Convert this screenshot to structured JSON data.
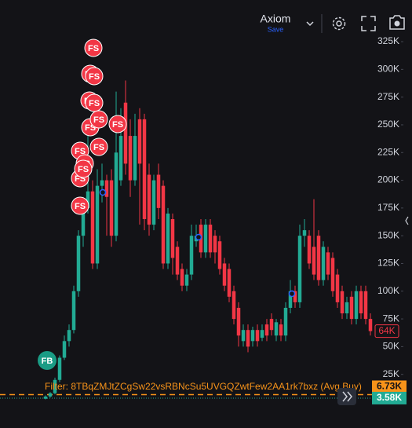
{
  "toolbar": {
    "layout_name": "Axiom",
    "save": "Save"
  },
  "chart_data": {
    "type": "candlestick",
    "ylim": [
      -5670,
      330700
    ],
    "yticks": [
      {
        "value": 25000,
        "label": "25K"
      },
      {
        "value": 50000,
        "label": "50K"
      },
      {
        "value": 75000,
        "label": "75K"
      },
      {
        "value": 100000,
        "label": "100K"
      },
      {
        "value": 125000,
        "label": "125K"
      },
      {
        "value": 150000,
        "label": "150K"
      },
      {
        "value": 175000,
        "label": "175K"
      },
      {
        "value": 200000,
        "label": "200K"
      },
      {
        "value": 225000,
        "label": "225K"
      },
      {
        "value": 250000,
        "label": "250K"
      },
      {
        "value": 275000,
        "label": "275K"
      },
      {
        "value": 300000,
        "label": "300K"
      },
      {
        "value": 325000,
        "label": "325K"
      }
    ],
    "up_color": "#22ab94",
    "down_color": "#f23645",
    "open": [
      3000,
      5000,
      8000,
      20000,
      40000,
      55000,
      65000,
      100000,
      150000,
      175000,
      190000,
      125000,
      195000,
      200000,
      200000,
      150000,
      200000,
      270000,
      240000,
      200000,
      255000,
      255000,
      205000,
      160000,
      205000,
      195000,
      125000,
      165000,
      140000,
      120000,
      105000,
      115000,
      145000,
      160000,
      135000,
      160000,
      150000,
      145000,
      125000,
      120000,
      100000,
      85000,
      55000,
      65000,
      55000,
      65000,
      58000,
      70000,
      75000,
      60000,
      70000,
      60000,
      85000,
      100000,
      90000,
      150000,
      150000,
      140000,
      150000,
      110000,
      135000,
      130000,
      115000,
      100000,
      80000,
      95000,
      75000,
      100000,
      100000,
      75000
    ],
    "high": [
      6000,
      9000,
      22000,
      42000,
      60000,
      70000,
      105000,
      155000,
      185000,
      240000,
      200000,
      210000,
      215000,
      205000,
      210000,
      280000,
      265000,
      290000,
      255000,
      260000,
      265000,
      260000,
      215000,
      205000,
      215000,
      200000,
      175000,
      170000,
      145000,
      125000,
      120000,
      160000,
      160000,
      165000,
      165000,
      165000,
      155000,
      150000,
      130000,
      125000,
      105000,
      90000,
      70000,
      70000,
      68000,
      70000,
      70000,
      75000,
      80000,
      75000,
      75000,
      90000,
      110000,
      105000,
      160000,
      165000,
      155000,
      183000,
      155000,
      145000,
      140000,
      135000,
      120000,
      105000,
      95000,
      100000,
      105000,
      105000,
      105000,
      80000
    ],
    "low": [
      2500,
      4000,
      7000,
      18000,
      38000,
      50000,
      62000,
      95000,
      140000,
      170000,
      120000,
      120000,
      180000,
      150000,
      140000,
      145000,
      195000,
      205000,
      185000,
      195000,
      160000,
      155000,
      150000,
      155000,
      165000,
      120000,
      120000,
      115000,
      110000,
      100000,
      100000,
      110000,
      140000,
      130000,
      130000,
      130000,
      125000,
      115000,
      100000,
      90000,
      70000,
      50000,
      50000,
      45000,
      50000,
      50000,
      55000,
      55000,
      60000,
      55000,
      55000,
      55000,
      80000,
      85000,
      85000,
      140000,
      120000,
      110000,
      105000,
      105000,
      110000,
      95000,
      85000,
      75000,
      75000,
      70000,
      70000,
      75000,
      70000,
      60000
    ],
    "close": [
      5000,
      8000,
      20000,
      40000,
      55000,
      65000,
      100000,
      150000,
      175000,
      190000,
      125000,
      195000,
      200000,
      185000,
      150000,
      225000,
      240000,
      215000,
      200000,
      240000,
      215000,
      165000,
      160000,
      200000,
      175000,
      125000,
      170000,
      130000,
      115000,
      105000,
      115000,
      150000,
      150000,
      135000,
      160000,
      135000,
      135000,
      120000,
      105000,
      95000,
      75000,
      60000,
      65000,
      50000,
      65000,
      55000,
      65000,
      60000,
      65000,
      72000,
      60000,
      85000,
      100000,
      90000,
      150000,
      155000,
      125000,
      115000,
      110000,
      140000,
      115000,
      100000,
      90000,
      80000,
      90000,
      75000,
      100000,
      80000,
      75000,
      64000
    ],
    "sell_markers": [
      "FS",
      "FS",
      "FS",
      "FS",
      "FS",
      "FS",
      "FS",
      "FS",
      "FS",
      "FS",
      "FS",
      "FS",
      "FS",
      "FS"
    ],
    "buy_markers": [
      "FB"
    ],
    "price_labels": [
      {
        "value": 64000,
        "label": "64K",
        "color": "#f23645"
      },
      {
        "value": 6730,
        "label": "6.73K",
        "color": "#f7931a"
      },
      {
        "value": 3580,
        "label": "3.58K",
        "color": "#22ab94"
      }
    ],
    "filter_label": "Filter: 8TBqZMJtZCgSw22vsRBNcSu5UVGQZwtFew2AA1rk7bxz (Avg Buy)"
  }
}
